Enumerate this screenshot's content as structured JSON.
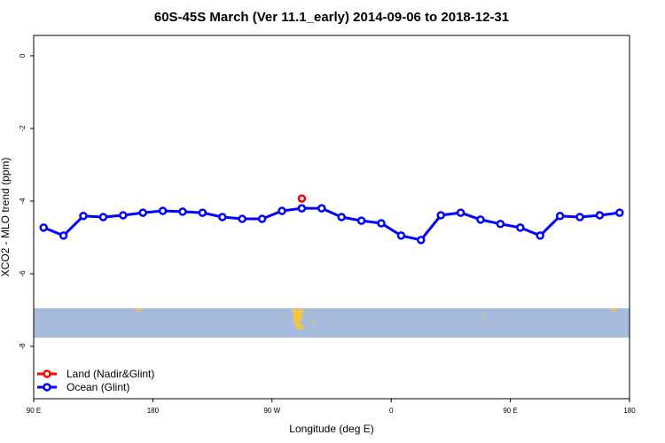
{
  "chart_data": {
    "type": "line",
    "title": "60S-45S March (Ver 11.1_early)   2014-09-06 to 2018-12-31",
    "x_label": "Longitude (deg E)",
    "y_label": "XCO2 - MLO trend (ppm)",
    "xlim": [
      90,
      540
    ],
    "xticks": [
      {
        "value": 90,
        "label": "90 E"
      },
      180,
      {
        "value": 270,
        "label": "90 W"
      },
      {
        "value": 360,
        "label": "0"
      },
      {
        "value": 450,
        "label": "90 E"
      },
      {
        "value": 540,
        "label": "180"
      }
    ],
    "ylim": [
      -9.44,
      0.56
    ],
    "yticks": [
      0,
      -2,
      -4,
      -6,
      -8
    ],
    "legend": "bottom-left",
    "series": [
      {
        "name": "Land (Nadir&Glint)",
        "color": "#ff0000",
        "x": [
          292.5
        ],
        "values": [
          -3.93
        ]
      },
      {
        "name": "Ocean (Glint)",
        "color": "#0000ff",
        "x": [
          97.5,
          112.5,
          127.5,
          142.5,
          157.5,
          172.5,
          187.5,
          202.5,
          217.5,
          232.5,
          247.5,
          262.5,
          277.5,
          292.5,
          307.5,
          322.5,
          337.5,
          352.5,
          367.5,
          382.5,
          397.5,
          412.5,
          427.5,
          442.5,
          457.5,
          472.5,
          487.5,
          502.5,
          517.5,
          532.5
        ],
        "values": [
          -4.73,
          -4.95,
          -4.41,
          -4.44,
          -4.39,
          -4.32,
          -4.27,
          -4.29,
          -4.32,
          -4.44,
          -4.49,
          -4.49,
          -4.27,
          -4.2,
          -4.2,
          -4.44,
          -4.54,
          -4.61,
          -4.95,
          -5.07,
          -4.39,
          -4.32,
          -4.51,
          -4.63,
          -4.73,
          -4.95,
          -4.41,
          -4.44,
          -4.39,
          -4.32
        ]
      }
    ]
  }
}
